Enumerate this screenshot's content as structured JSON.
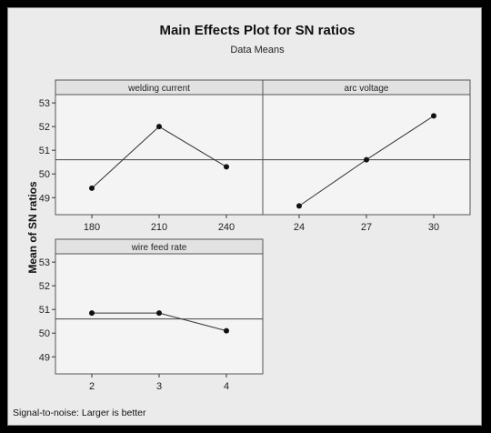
{
  "chart_data": {
    "type": "line",
    "title": "Main Effects Plot for SN ratios",
    "subtitle": "Data Means",
    "ylabel": "Mean of SN ratios",
    "ylim": [
      48.5,
      53.2
    ],
    "yticks": [
      49,
      50,
      51,
      52,
      53
    ],
    "reference_line": 50.6,
    "footnote": "Signal-to-noise: Larger is better",
    "panels": [
      {
        "name": "welding current",
        "categories": [
          "180",
          "210",
          "240"
        ],
        "values": [
          49.4,
          52.0,
          50.3
        ]
      },
      {
        "name": "arc voltage",
        "categories": [
          "24",
          "27",
          "30"
        ],
        "values": [
          48.65,
          50.6,
          52.45
        ]
      },
      {
        "name": "wire feed rate",
        "categories": [
          "2",
          "3",
          "4"
        ],
        "values": [
          50.85,
          50.85,
          50.1
        ]
      }
    ]
  }
}
